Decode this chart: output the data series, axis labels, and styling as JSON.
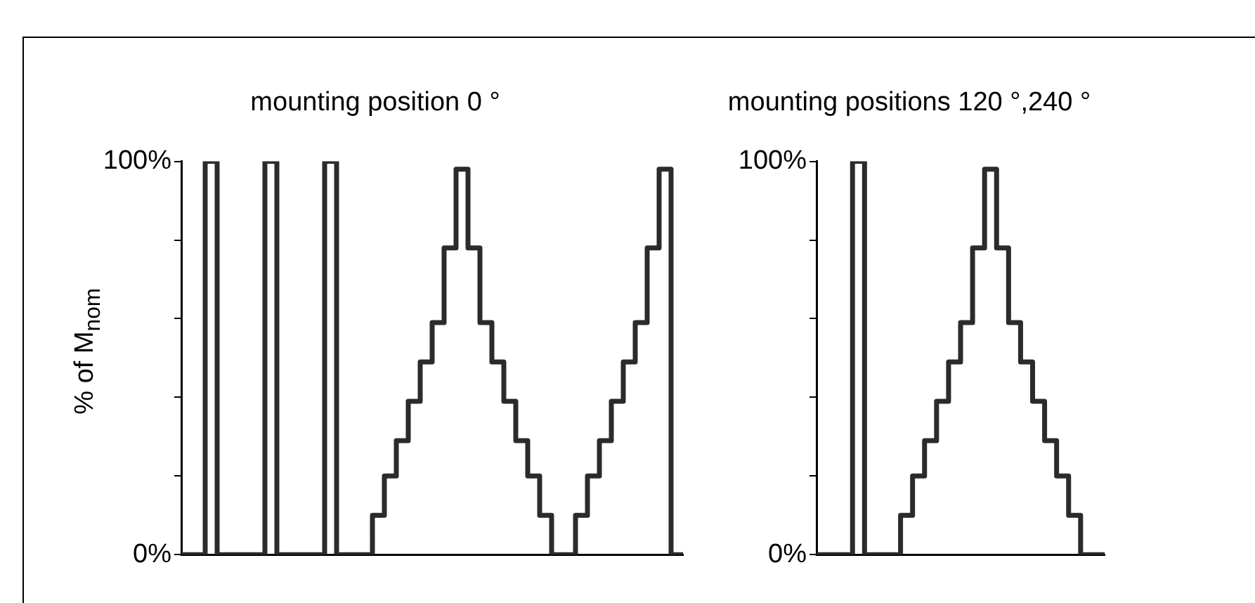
{
  "chart_data": [
    {
      "type": "step",
      "title": "mounting position 0 °",
      "ylabel": "% of M$_{nom}$",
      "categories": [
        null,
        null,
        null,
        null,
        null,
        null,
        null,
        null,
        null,
        null,
        null,
        null,
        null,
        null,
        null,
        null,
        null,
        null,
        null,
        null,
        null,
        null,
        null,
        null,
        null,
        null,
        null,
        null,
        null,
        null,
        null,
        null,
        null,
        null,
        null,
        null,
        null,
        null,
        null,
        null,
        null,
        null,
        null
      ],
      "series": [
        {
          "color": "#2b2b2b",
          "values": [
            0,
            0,
            100,
            0,
            0,
            0,
            0,
            100,
            0,
            0,
            0,
            0,
            100,
            0,
            0,
            0,
            10,
            20,
            29,
            39,
            49,
            59,
            78,
            98,
            78,
            59,
            49,
            39,
            29,
            20,
            10,
            0,
            0,
            10,
            20,
            29,
            39,
            49,
            59,
            78,
            98,
            0,
            0
          ]
        }
      ],
      "ylim": [
        0,
        100
      ],
      "yticks": [
        {
          "value": 0,
          "label": "0%"
        },
        {
          "value": 20,
          "label": null
        },
        {
          "value": 40,
          "label": null
        },
        {
          "value": 60,
          "label": null
        },
        {
          "value": 80,
          "label": null
        },
        {
          "value": 100,
          "label": "100%"
        }
      ],
      "tick_labels": "y",
      "grid": false,
      "legend": false
    },
    {
      "type": "step",
      "title": "mounting positions 120 °,240 °",
      "categories": [
        null,
        null,
        null,
        null,
        null,
        null,
        null,
        null,
        null,
        null,
        null,
        null,
        null,
        null,
        null,
        null,
        null,
        null,
        null,
        null,
        null,
        null,
        null,
        null,
        null
      ],
      "series": [
        {
          "color": "#2b2b2b",
          "values": [
            0,
            0,
            0,
            100,
            0,
            0,
            0,
            10,
            20,
            29,
            39,
            49,
            59,
            78,
            98,
            78,
            59,
            49,
            39,
            29,
            20,
            10,
            0,
            0,
            0
          ]
        }
      ],
      "ylim": [
        0,
        100
      ],
      "yticks": [
        {
          "value": 0,
          "label": "0%"
        },
        {
          "value": 20,
          "label": null
        },
        {
          "value": 40,
          "label": null
        },
        {
          "value": 60,
          "label": null
        },
        {
          "value": 80,
          "label": null
        },
        {
          "value": 100,
          "label": "100%"
        }
      ],
      "tick_labels": "y",
      "grid": false,
      "legend": false
    }
  ]
}
